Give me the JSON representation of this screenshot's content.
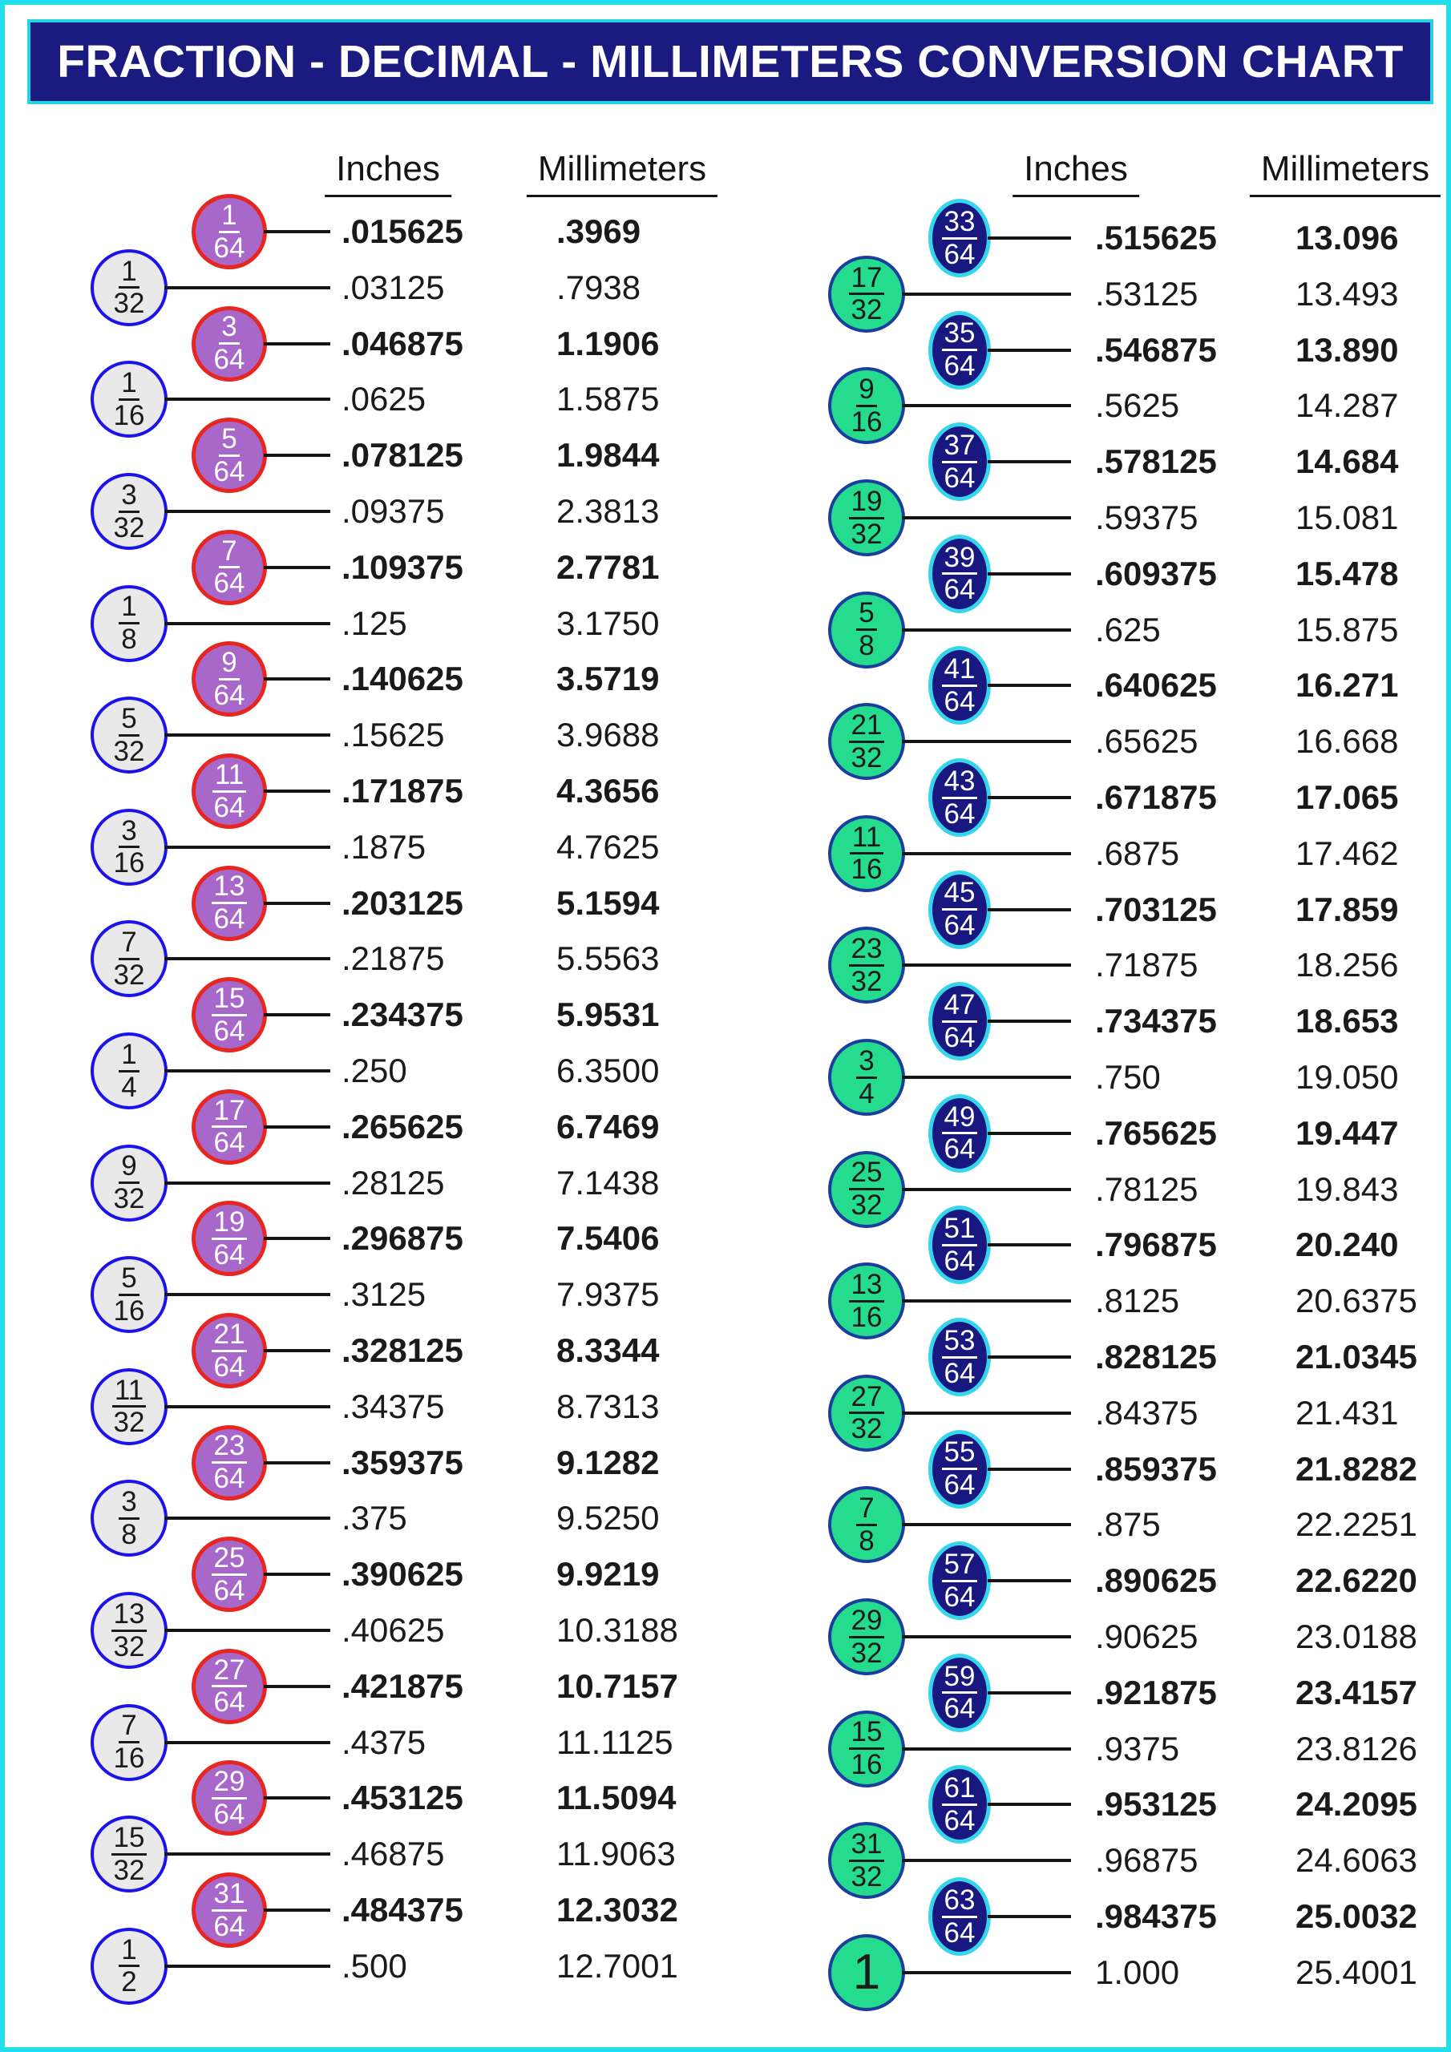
{
  "title": "FRACTION - DECIMAL - MILLIMETERS CONVERSION CHART",
  "headers": {
    "left_inches": "Inches",
    "left_mm": "Millimeters",
    "right_inches": "Inches",
    "right_mm": "Millimeters"
  },
  "colors": {
    "page_border": "#22dee8",
    "title_background": "#1a1a80",
    "title_border": "#23d3e3",
    "title_text": "#ffffff",
    "circle_64th_left_fill": "#a868ca",
    "circle_64th_left_border": "#e6261f",
    "circle_coarse_left_fill": "#e9e9e9",
    "circle_coarse_left_border": "#1b13ea",
    "circle_64th_right_fill": "#181880",
    "circle_64th_right_border": "#35d6eb",
    "circle_coarse_right_fill": "#25dc8e",
    "circle_coarse_right_border": "#1a3e9e",
    "text": "#1a1a1a"
  },
  "rows": {
    "left": [
      {
        "num": "1",
        "den": "64",
        "style": "purple",
        "bold": true,
        "inches": ".015625",
        "mm": ".3969"
      },
      {
        "num": "1",
        "den": "32",
        "style": "gray",
        "bold": false,
        "inches": ".03125",
        "mm": ".7938"
      },
      {
        "num": "3",
        "den": "64",
        "style": "purple",
        "bold": true,
        "inches": ".046875",
        "mm": "1.1906"
      },
      {
        "num": "1",
        "den": "16",
        "style": "gray",
        "bold": false,
        "inches": ".0625",
        "mm": "1.5875"
      },
      {
        "num": "5",
        "den": "64",
        "style": "purple",
        "bold": true,
        "inches": ".078125",
        "mm": "1.9844"
      },
      {
        "num": "3",
        "den": "32",
        "style": "gray",
        "bold": false,
        "inches": ".09375",
        "mm": "2.3813"
      },
      {
        "num": "7",
        "den": "64",
        "style": "purple",
        "bold": true,
        "inches": ".109375",
        "mm": "2.7781"
      },
      {
        "num": "1",
        "den": "8",
        "style": "gray",
        "bold": false,
        "inches": ".125",
        "mm": "3.1750"
      },
      {
        "num": "9",
        "den": "64",
        "style": "purple",
        "bold": true,
        "inches": ".140625",
        "mm": "3.5719"
      },
      {
        "num": "5",
        "den": "32",
        "style": "gray",
        "bold": false,
        "inches": ".15625",
        "mm": "3.9688"
      },
      {
        "num": "11",
        "den": "64",
        "style": "purple",
        "bold": true,
        "inches": ".171875",
        "mm": "4.3656"
      },
      {
        "num": "3",
        "den": "16",
        "style": "gray",
        "bold": false,
        "inches": ".1875",
        "mm": "4.7625"
      },
      {
        "num": "13",
        "den": "64",
        "style": "purple",
        "bold": true,
        "inches": ".203125",
        "mm": "5.1594"
      },
      {
        "num": "7",
        "den": "32",
        "style": "gray",
        "bold": false,
        "inches": ".21875",
        "mm": "5.5563"
      },
      {
        "num": "15",
        "den": "64",
        "style": "purple",
        "bold": true,
        "inches": ".234375",
        "mm": "5.9531"
      },
      {
        "num": "1",
        "den": "4",
        "style": "gray",
        "bold": false,
        "inches": ".250",
        "mm": "6.3500"
      },
      {
        "num": "17",
        "den": "64",
        "style": "purple",
        "bold": true,
        "inches": ".265625",
        "mm": "6.7469"
      },
      {
        "num": "9",
        "den": "32",
        "style": "gray",
        "bold": false,
        "inches": ".28125",
        "mm": "7.1438"
      },
      {
        "num": "19",
        "den": "64",
        "style": "purple",
        "bold": true,
        "inches": ".296875",
        "mm": "7.5406"
      },
      {
        "num": "5",
        "den": "16",
        "style": "gray",
        "bold": false,
        "inches": ".3125",
        "mm": "7.9375"
      },
      {
        "num": "21",
        "den": "64",
        "style": "purple",
        "bold": true,
        "inches": ".328125",
        "mm": "8.3344"
      },
      {
        "num": "11",
        "den": "32",
        "style": "gray",
        "bold": false,
        "inches": ".34375",
        "mm": "8.7313"
      },
      {
        "num": "23",
        "den": "64",
        "style": "purple",
        "bold": true,
        "inches": ".359375",
        "mm": "9.1282"
      },
      {
        "num": "3",
        "den": "8",
        "style": "gray",
        "bold": false,
        "inches": ".375",
        "mm": "9.5250"
      },
      {
        "num": "25",
        "den": "64",
        "style": "purple",
        "bold": true,
        "inches": ".390625",
        "mm": "9.9219"
      },
      {
        "num": "13",
        "den": "32",
        "style": "gray",
        "bold": false,
        "inches": ".40625",
        "mm": "10.3188"
      },
      {
        "num": "27",
        "den": "64",
        "style": "purple",
        "bold": true,
        "inches": ".421875",
        "mm": "10.7157"
      },
      {
        "num": "7",
        "den": "16",
        "style": "gray",
        "bold": false,
        "inches": ".4375",
        "mm": "11.1125"
      },
      {
        "num": "29",
        "den": "64",
        "style": "purple",
        "bold": true,
        "inches": ".453125",
        "mm": "11.5094"
      },
      {
        "num": "15",
        "den": "32",
        "style": "gray",
        "bold": false,
        "inches": ".46875",
        "mm": "11.9063"
      },
      {
        "num": "31",
        "den": "64",
        "style": "purple",
        "bold": true,
        "inches": ".484375",
        "mm": "12.3032"
      },
      {
        "num": "1",
        "den": "2",
        "style": "gray",
        "bold": false,
        "inches": ".500",
        "mm": "12.7001"
      }
    ],
    "right": [
      {
        "num": "33",
        "den": "64",
        "style": "navy",
        "bold": true,
        "inches": ".515625",
        "mm": "13.096"
      },
      {
        "num": "17",
        "den": "32",
        "style": "green",
        "bold": false,
        "inches": ".53125",
        "mm": "13.493"
      },
      {
        "num": "35",
        "den": "64",
        "style": "navy",
        "bold": true,
        "inches": ".546875",
        "mm": "13.890"
      },
      {
        "num": "9",
        "den": "16",
        "style": "green",
        "bold": false,
        "inches": ".5625",
        "mm": "14.287"
      },
      {
        "num": "37",
        "den": "64",
        "style": "navy",
        "bold": true,
        "inches": ".578125",
        "mm": "14.684"
      },
      {
        "num": "19",
        "den": "32",
        "style": "green",
        "bold": false,
        "inches": ".59375",
        "mm": "15.081"
      },
      {
        "num": "39",
        "den": "64",
        "style": "navy",
        "bold": true,
        "inches": ".609375",
        "mm": "15.478"
      },
      {
        "num": "5",
        "den": "8",
        "style": "green",
        "bold": false,
        "inches": ".625",
        "mm": "15.875"
      },
      {
        "num": "41",
        "den": "64",
        "style": "navy",
        "bold": true,
        "inches": ".640625",
        "mm": "16.271"
      },
      {
        "num": "21",
        "den": "32",
        "style": "green",
        "bold": false,
        "inches": ".65625",
        "mm": "16.668"
      },
      {
        "num": "43",
        "den": "64",
        "style": "navy",
        "bold": true,
        "inches": ".671875",
        "mm": "17.065"
      },
      {
        "num": "11",
        "den": "16",
        "style": "green",
        "bold": false,
        "inches": ".6875",
        "mm": "17.462"
      },
      {
        "num": "45",
        "den": "64",
        "style": "navy",
        "bold": true,
        "inches": ".703125",
        "mm": "17.859"
      },
      {
        "num": "23",
        "den": "32",
        "style": "green",
        "bold": false,
        "inches": ".71875",
        "mm": "18.256"
      },
      {
        "num": "47",
        "den": "64",
        "style": "navy",
        "bold": true,
        "inches": ".734375",
        "mm": "18.653"
      },
      {
        "num": "3",
        "den": "4",
        "style": "green",
        "bold": false,
        "inches": ".750",
        "mm": "19.050"
      },
      {
        "num": "49",
        "den": "64",
        "style": "navy",
        "bold": true,
        "inches": ".765625",
        "mm": "19.447"
      },
      {
        "num": "25",
        "den": "32",
        "style": "green",
        "bold": false,
        "inches": ".78125",
        "mm": "19.843"
      },
      {
        "num": "51",
        "den": "64",
        "style": "navy",
        "bold": true,
        "inches": ".796875",
        "mm": "20.240"
      },
      {
        "num": "13",
        "den": "16",
        "style": "green",
        "bold": false,
        "inches": ".8125",
        "mm": "20.6375"
      },
      {
        "num": "53",
        "den": "64",
        "style": "navy",
        "bold": true,
        "inches": ".828125",
        "mm": "21.0345"
      },
      {
        "num": "27",
        "den": "32",
        "style": "green",
        "bold": false,
        "inches": ".84375",
        "mm": "21.431"
      },
      {
        "num": "55",
        "den": "64",
        "style": "navy",
        "bold": true,
        "inches": ".859375",
        "mm": "21.8282"
      },
      {
        "num": "7",
        "den": "8",
        "style": "green",
        "bold": false,
        "inches": ".875",
        "mm": "22.2251"
      },
      {
        "num": "57",
        "den": "64",
        "style": "navy",
        "bold": true,
        "inches": ".890625",
        "mm": "22.6220"
      },
      {
        "num": "29",
        "den": "32",
        "style": "green",
        "bold": false,
        "inches": ".90625",
        "mm": "23.0188"
      },
      {
        "num": "59",
        "den": "64",
        "style": "navy",
        "bold": true,
        "inches": ".921875",
        "mm": "23.4157"
      },
      {
        "num": "15",
        "den": "16",
        "style": "green",
        "bold": false,
        "inches": ".9375",
        "mm": "23.8126"
      },
      {
        "num": "61",
        "den": "64",
        "style": "navy",
        "bold": true,
        "inches": ".953125",
        "mm": "24.2095"
      },
      {
        "num": "31",
        "den": "32",
        "style": "green",
        "bold": false,
        "inches": ".96875",
        "mm": "24.6063"
      },
      {
        "num": "63",
        "den": "64",
        "style": "navy",
        "bold": true,
        "inches": ".984375",
        "mm": "25.0032"
      },
      {
        "num": "1",
        "den": "",
        "style": "green",
        "bold": false,
        "whole": true,
        "inches": "1.000",
        "mm": "25.4001"
      }
    ]
  }
}
